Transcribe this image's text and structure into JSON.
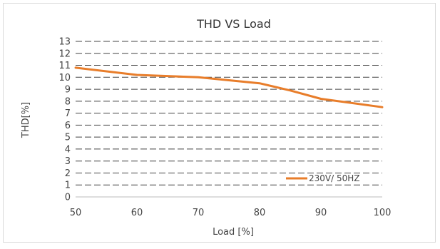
{
  "chart_data": {
    "type": "line",
    "title": "THD VS Load",
    "xlabel": "Load [%]",
    "ylabel": "THD[%]",
    "x": [
      50,
      60,
      70,
      80,
      90,
      100
    ],
    "xlim": [
      50,
      100
    ],
    "ylim": [
      0,
      13
    ],
    "xticks": [
      "50",
      "60",
      "70",
      "80",
      "90",
      "100"
    ],
    "yticks": [
      "0",
      "1",
      "2",
      "3",
      "4",
      "5",
      "6",
      "7",
      "8",
      "9",
      "10",
      "11",
      "12",
      "13"
    ],
    "grid": "horizontal-dashed",
    "legend_position": "bottom-right",
    "series": [
      {
        "name": "230V/ 50HZ",
        "color": "#e87d2a",
        "x": [
          50,
          60,
          70,
          80,
          85,
          90,
          100
        ],
        "values": [
          10.8,
          10.2,
          10.0,
          9.5,
          8.9,
          8.2,
          7.5
        ]
      }
    ]
  }
}
